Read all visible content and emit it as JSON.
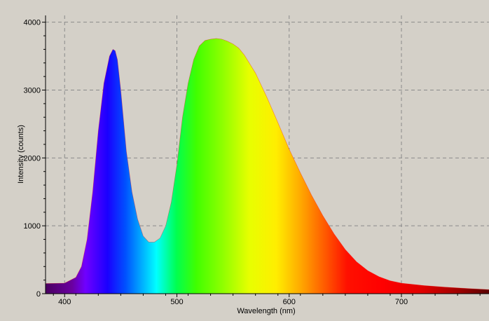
{
  "chart_data": {
    "type": "area",
    "title": "",
    "xlabel": "Wavelength (nm)",
    "ylabel": "Intensity (counts)",
    "xlim": [
      383,
      778
    ],
    "ylim": [
      0,
      4100
    ],
    "x_ticks": [
      400,
      500,
      600,
      700
    ],
    "y_ticks": [
      0,
      1000,
      2000,
      3000,
      4000
    ],
    "grid": true,
    "fill": "visible-spectrum-rainbow",
    "series": [
      {
        "x": [
          383,
          400,
          410,
          415,
          420,
          425,
          430,
          435,
          440,
          443,
          445,
          447,
          450,
          455,
          460,
          465,
          470,
          475,
          480,
          485,
          490,
          495,
          500,
          505,
          510,
          515,
          520,
          525,
          530,
          535,
          540,
          545,
          550,
          555,
          560,
          570,
          580,
          590,
          600,
          610,
          620,
          630,
          640,
          650,
          660,
          670,
          680,
          690,
          700,
          720,
          740,
          760,
          778
        ],
        "y": [
          150,
          155,
          240,
          400,
          800,
          1500,
          2400,
          3100,
          3500,
          3600,
          3580,
          3450,
          3000,
          2100,
          1500,
          1100,
          850,
          760,
          760,
          820,
          1000,
          1350,
          1900,
          2600,
          3100,
          3450,
          3650,
          3730,
          3750,
          3760,
          3750,
          3720,
          3680,
          3620,
          3520,
          3250,
          2900,
          2520,
          2130,
          1780,
          1450,
          1150,
          880,
          650,
          470,
          340,
          250,
          190,
          155,
          120,
          95,
          75,
          60
        ]
      }
    ]
  }
}
